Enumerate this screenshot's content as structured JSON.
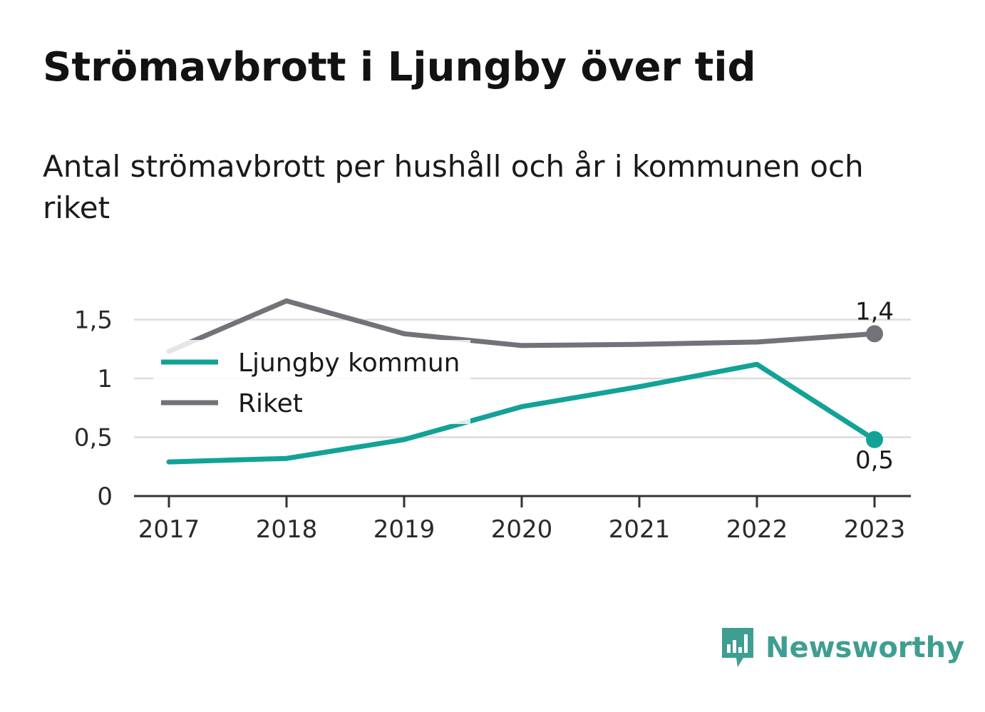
{
  "title": "Strömavbrott i Ljungby över tid",
  "subtitle": "Antal strömavbrott per hushåll och år i kommunen och riket",
  "brand": {
    "name": "Newsworthy",
    "icon": "bar-chart-speech-bubble-icon",
    "color": "#3f9e92"
  },
  "chart_data": {
    "type": "line",
    "x": [
      "2017",
      "2018",
      "2019",
      "2020",
      "2021",
      "2022",
      "2023"
    ],
    "yticks": [
      {
        "value": 0,
        "label": "0"
      },
      {
        "value": 0.5,
        "label": "0,5"
      },
      {
        "value": 1,
        "label": "1"
      },
      {
        "value": 1.5,
        "label": "1,5"
      }
    ],
    "ylim": [
      0,
      1.75
    ],
    "grid": true,
    "legend_position": "top-left",
    "series": [
      {
        "name": "Ljungby kommun",
        "color": "#12a296",
        "values": [
          0.29,
          0.32,
          0.48,
          0.76,
          0.93,
          1.12,
          0.48
        ],
        "end_label": "0,5",
        "end_label_position": "below"
      },
      {
        "name": "Riket",
        "color": "#737278",
        "values": [
          1.23,
          1.66,
          1.38,
          1.28,
          1.29,
          1.31,
          1.38
        ],
        "end_label": "1,4",
        "end_label_position": "above"
      }
    ]
  }
}
